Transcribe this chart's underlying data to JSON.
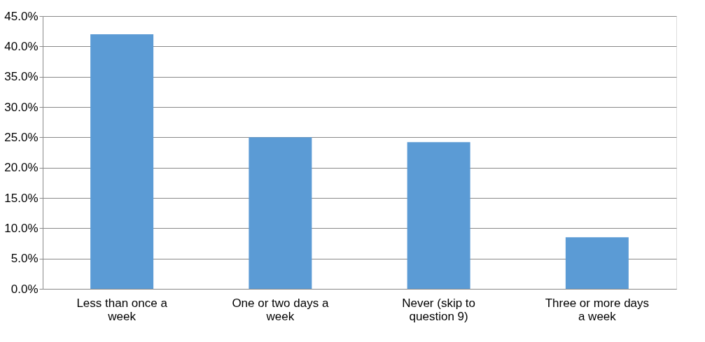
{
  "chart_data": {
    "type": "bar",
    "categories": [
      "Less than once a week",
      "One or two days a week",
      "Never (skip to question 9)",
      "Three or more days a week"
    ],
    "values": [
      42.0,
      25.0,
      24.2,
      8.5
    ],
    "color": "#5b9bd5",
    "ylim": [
      0,
      45
    ],
    "yticks": [
      {
        "value": 0,
        "label": "0.0%"
      },
      {
        "value": 5,
        "label": "5.0%"
      },
      {
        "value": 10,
        "label": "10.0%"
      },
      {
        "value": 15,
        "label": "15.0%"
      },
      {
        "value": 20,
        "label": "20.0%"
      },
      {
        "value": 25,
        "label": "25.0%"
      },
      {
        "value": 30,
        "label": "30.0%"
      },
      {
        "value": 35,
        "label": "35.0%"
      },
      {
        "value": 40,
        "label": "40.0%"
      },
      {
        "value": 45,
        "label": "45.0%"
      }
    ],
    "grid": "y"
  }
}
